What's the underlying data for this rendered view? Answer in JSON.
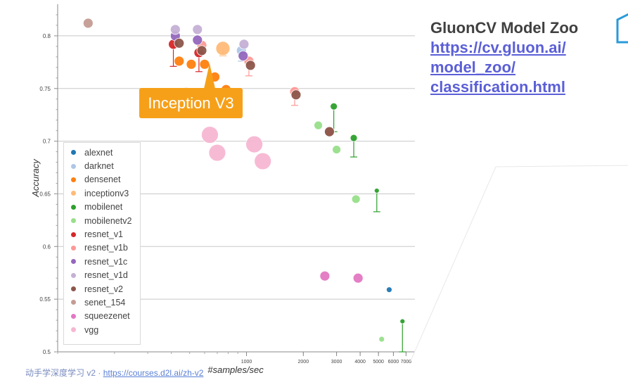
{
  "panel": {
    "title": "GluonCV Model Zoo",
    "link_lines": [
      "https://cv.gluon.ai/",
      "model_zoo/",
      "classification.html"
    ]
  },
  "footer": {
    "text": "动手学深度学习 v2 · ",
    "link": "https://courses.d2l.ai/zh-v2"
  },
  "callout": {
    "text": "Inception V3"
  },
  "chart_data": {
    "type": "scatter",
    "xlabel": "#samples/sec",
    "ylabel": "Accuracy",
    "xscale": "log",
    "xlim": [
      100,
      7800
    ],
    "ylim": [
      0.5,
      0.83
    ],
    "grid": true,
    "legend_position": "bottom-left",
    "x_ticks": [
      1000,
      2000,
      3000,
      4000,
      5000,
      6000,
      7000
    ],
    "y_ticks": [
      0.5,
      0.55,
      0.6,
      0.65,
      0.7,
      0.75,
      0.8
    ],
    "y_tick_labels": [
      "0.5",
      "0.55",
      "0.6",
      "0.65",
      "0.7",
      "0.75",
      "0.8"
    ],
    "series": [
      {
        "name": "alexnet",
        "color": "#1f77b4",
        "points": [
          [
            5700,
            0.559,
            0.559
          ]
        ]
      },
      {
        "name": "darknet",
        "color": "#aec7e8",
        "points": [
          [
            940,
            0.786,
            0.776
          ]
        ]
      },
      {
        "name": "densenet",
        "color": "#ff7f0e",
        "points": [
          [
            440,
            0.776,
            0.776
          ],
          [
            510,
            0.773,
            0.773
          ],
          [
            600,
            0.773,
            0.773
          ],
          [
            680,
            0.761,
            0.761
          ],
          [
            780,
            0.749,
            0.749
          ]
        ]
      },
      {
        "name": "inceptionv3",
        "color": "#ffbb78",
        "points": [
          [
            750,
            0.788,
            0.781
          ]
        ]
      },
      {
        "name": "mobilenet",
        "color": "#2ca02c",
        "points": [
          [
            2900,
            0.733,
            0.709
          ],
          [
            3700,
            0.703,
            0.685
          ],
          [
            4900,
            0.653,
            0.633
          ],
          [
            6700,
            0.529,
            0.5
          ]
        ]
      },
      {
        "name": "mobilenetv2",
        "color": "#98df8a",
        "points": [
          [
            2400,
            0.715,
            0.715
          ],
          [
            3000,
            0.692,
            0.692
          ],
          [
            3800,
            0.645,
            0.645
          ],
          [
            5200,
            0.512,
            0.512
          ]
        ]
      },
      {
        "name": "resnet_v1",
        "color": "#d62728",
        "points": [
          [
            410,
            0.792,
            0.771
          ],
          [
            560,
            0.784,
            0.766
          ]
        ]
      },
      {
        "name": "resnet_v1b",
        "color": "#ff9896",
        "points": [
          [
            580,
            0.791,
            0.784
          ],
          [
            1030,
            0.776,
            0.762
          ],
          [
            1800,
            0.747,
            0.734
          ],
          [
            2750,
            0.709,
            0.709
          ]
        ]
      },
      {
        "name": "resnet_v1c",
        "color": "#9467bd",
        "points": [
          [
            420,
            0.8,
            0.8
          ],
          [
            550,
            0.796,
            0.796
          ],
          [
            960,
            0.781,
            0.781
          ]
        ]
      },
      {
        "name": "resnet_v1d",
        "color": "#c5b0d5",
        "points": [
          [
            420,
            0.806,
            0.806
          ],
          [
            550,
            0.806,
            0.806
          ],
          [
            970,
            0.792,
            0.792
          ]
        ]
      },
      {
        "name": "resnet_v2",
        "color": "#8c564b",
        "points": [
          [
            440,
            0.793,
            0.793
          ],
          [
            580,
            0.786,
            0.786
          ],
          [
            1050,
            0.772,
            0.772
          ],
          [
            1830,
            0.744,
            0.744
          ],
          [
            2750,
            0.709,
            0.709
          ]
        ]
      },
      {
        "name": "senet_154",
        "color": "#c49c94",
        "points": [
          [
            145,
            0.812,
            0.812
          ]
        ]
      },
      {
        "name": "squeezenet",
        "color": "#e377c2",
        "points": [
          [
            2600,
            0.572,
            0.572
          ],
          [
            3900,
            0.57,
            0.57
          ]
        ]
      },
      {
        "name": "vgg",
        "color": "#f7b6d2",
        "points": [
          [
            480,
            0.743,
            0.743
          ],
          [
            640,
            0.706,
            0.706
          ],
          [
            700,
            0.689,
            0.689
          ],
          [
            1100,
            0.697,
            0.697
          ],
          [
            1220,
            0.681,
            0.681
          ]
        ]
      }
    ]
  }
}
